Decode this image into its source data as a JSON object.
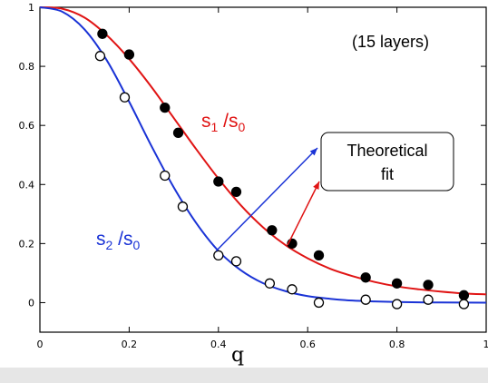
{
  "chart_data": {
    "type": "scatter",
    "xlabel": "q",
    "ylabel": "",
    "xlim": [
      0,
      1
    ],
    "ylim": [
      -0.1,
      1
    ],
    "x_ticks": [
      "0",
      "0.2",
      "0.4",
      "0.6",
      "0.8",
      "1"
    ],
    "y_ticks": [
      "0",
      "0.2",
      "0.4",
      "0.6",
      "0.8",
      "1"
    ],
    "grid": false,
    "annotation": "(15 layers)",
    "callout": {
      "line1": "Theoretical",
      "line2": "fit"
    },
    "series": [
      {
        "name": "s1/s0",
        "label_main": "s",
        "label_sub1": "1",
        "label_slash": " /s",
        "label_sub2": "0",
        "color": "#e01414",
        "marker": "filled-circle",
        "points": [
          [
            0.14,
            0.91
          ],
          [
            0.2,
            0.84
          ],
          [
            0.28,
            0.66
          ],
          [
            0.31,
            0.575
          ],
          [
            0.4,
            0.41
          ],
          [
            0.44,
            0.375
          ],
          [
            0.52,
            0.245
          ],
          [
            0.565,
            0.2
          ],
          [
            0.625,
            0.16
          ],
          [
            0.73,
            0.085
          ],
          [
            0.8,
            0.065
          ],
          [
            0.87,
            0.06
          ],
          [
            0.95,
            0.025
          ]
        ],
        "fit": [
          [
            0.0,
            1.0
          ],
          [
            0.05,
            0.995
          ],
          [
            0.1,
            0.965
          ],
          [
            0.15,
            0.905
          ],
          [
            0.2,
            0.825
          ],
          [
            0.25,
            0.73
          ],
          [
            0.3,
            0.625
          ],
          [
            0.35,
            0.52
          ],
          [
            0.4,
            0.42
          ],
          [
            0.45,
            0.33
          ],
          [
            0.5,
            0.255
          ],
          [
            0.55,
            0.195
          ],
          [
            0.6,
            0.15
          ],
          [
            0.65,
            0.115
          ],
          [
            0.7,
            0.09
          ],
          [
            0.75,
            0.07
          ],
          [
            0.8,
            0.055
          ],
          [
            0.85,
            0.045
          ],
          [
            0.9,
            0.037
          ],
          [
            0.95,
            0.031
          ],
          [
            1.0,
            0.028
          ]
        ]
      },
      {
        "name": "s2/s0",
        "label_main": "s",
        "label_sub1": "2",
        "label_slash": " /s",
        "label_sub2": "0",
        "color": "#1a33d6",
        "marker": "open-circle",
        "points": [
          [
            0.135,
            0.835
          ],
          [
            0.19,
            0.695
          ],
          [
            0.28,
            0.43
          ],
          [
            0.32,
            0.325
          ],
          [
            0.4,
            0.16
          ],
          [
            0.44,
            0.14
          ],
          [
            0.515,
            0.065
          ],
          [
            0.565,
            0.045
          ],
          [
            0.625,
            0.0
          ],
          [
            0.73,
            0.01
          ],
          [
            0.8,
            -0.005
          ],
          [
            0.87,
            0.01
          ],
          [
            0.95,
            -0.005
          ]
        ],
        "fit": [
          [
            0.0,
            1.0
          ],
          [
            0.05,
            0.985
          ],
          [
            0.1,
            0.925
          ],
          [
            0.15,
            0.82
          ],
          [
            0.2,
            0.68
          ],
          [
            0.25,
            0.53
          ],
          [
            0.3,
            0.39
          ],
          [
            0.35,
            0.27
          ],
          [
            0.4,
            0.175
          ],
          [
            0.45,
            0.11
          ],
          [
            0.5,
            0.066
          ],
          [
            0.55,
            0.039
          ],
          [
            0.6,
            0.022
          ],
          [
            0.65,
            0.013
          ],
          [
            0.7,
            0.007
          ],
          [
            0.75,
            0.004
          ],
          [
            0.8,
            0.002
          ],
          [
            0.85,
            0.001
          ],
          [
            0.9,
            0.0005
          ],
          [
            1.0,
            0.0
          ]
        ]
      }
    ]
  }
}
